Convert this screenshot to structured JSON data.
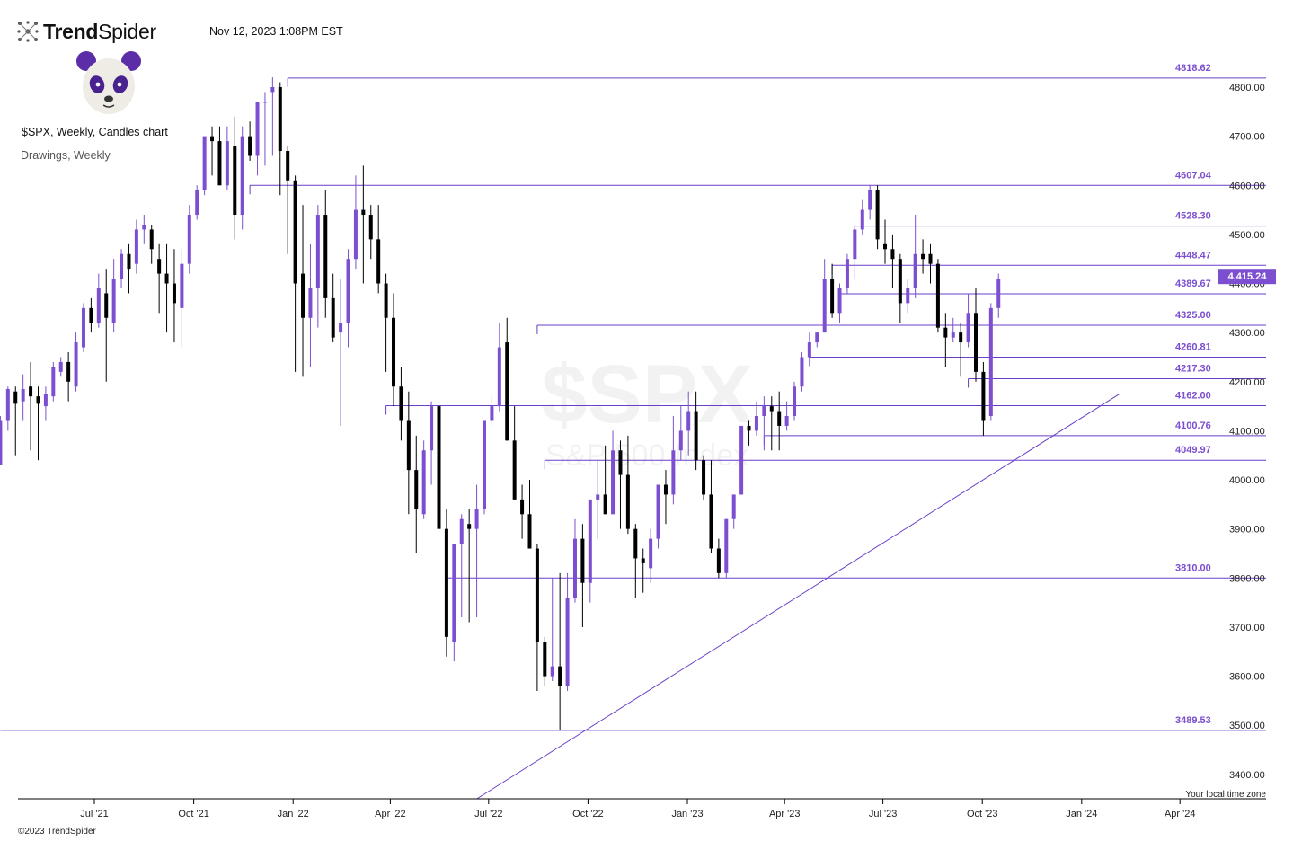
{
  "header": {
    "brand_bold": "Trend",
    "brand_light": "Spider",
    "timestamp": "Nov 12, 2023 1:08PM EST",
    "chart_title": "$SPX, Weekly, Candles chart",
    "subtitle": "Drawings, Weekly",
    "copyright": "©2023 TrendSpider"
  },
  "colors": {
    "bull": "#7b4fd0",
    "bear": "#000000",
    "line": "#6a3fc8",
    "accent": "#7b4fd0"
  },
  "icons": [
    "trendspider-logo-icon",
    "panda-avatar-icon"
  ],
  "watermark": {
    "symbol": "$SPX",
    "name": "S&P 500 Index"
  },
  "chart_data": {
    "type": "candlestick",
    "symbol": "$SPX",
    "timeframe": "Weekly",
    "ylim": [
      3365,
      4870
    ],
    "xlim": [
      "2021-04-05",
      "2024-04-20"
    ],
    "y_ticks": [
      "3400.00",
      "3500.00",
      "3600.00",
      "3700.00",
      "3800.00",
      "3900.00",
      "4000.00",
      "4100.00",
      "4200.00",
      "4300.00",
      "4400.00",
      "4500.00",
      "4600.00",
      "4700.00",
      "4800.00"
    ],
    "x_ticks": [
      {
        "date": "2021-07-01",
        "label": "Jul '21"
      },
      {
        "date": "2021-10-01",
        "label": "Oct '21"
      },
      {
        "date": "2022-01-01",
        "label": "Jan '22"
      },
      {
        "date": "2022-04-01",
        "label": "Apr '22"
      },
      {
        "date": "2022-07-01",
        "label": "Jul '22"
      },
      {
        "date": "2022-10-01",
        "label": "Oct '22"
      },
      {
        "date": "2023-01-01",
        "label": "Jan '23"
      },
      {
        "date": "2023-04-01",
        "label": "Apr '23"
      },
      {
        "date": "2023-07-01",
        "label": "Jul '23"
      },
      {
        "date": "2023-10-01",
        "label": "Oct '23"
      },
      {
        "date": "2024-01-01",
        "label": "Jan '24"
      },
      {
        "date": "2024-04-01",
        "label": "Apr '24"
      }
    ],
    "first_week": "2021-04-05",
    "candles_ohlc": [
      [
        4030,
        4130,
        4030,
        4120
      ],
      [
        4120,
        4190,
        4100,
        4185
      ],
      [
        4180,
        4190,
        4050,
        4155
      ],
      [
        4160,
        4215,
        4120,
        4185
      ],
      [
        4190,
        4240,
        4060,
        4170
      ],
      [
        4170,
        4190,
        4040,
        4155
      ],
      [
        4150,
        4190,
        4120,
        4175
      ],
      [
        4170,
        4240,
        4160,
        4230
      ],
      [
        4220,
        4250,
        4210,
        4240
      ],
      [
        4240,
        4260,
        4160,
        4200
      ],
      [
        4190,
        4300,
        4180,
        4280
      ],
      [
        4270,
        4360,
        4260,
        4350
      ],
      [
        4350,
        4370,
        4300,
        4320
      ],
      [
        4320,
        4420,
        4310,
        4390
      ],
      [
        4380,
        4430,
        4200,
        4330
      ],
      [
        4320,
        4450,
        4300,
        4410
      ],
      [
        4410,
        4470,
        4390,
        4460
      ],
      [
        4460,
        4480,
        4380,
        4430
      ],
      [
        4440,
        4530,
        4420,
        4510
      ],
      [
        4510,
        4540,
        4480,
        4520
      ],
      [
        4510,
        4520,
        4440,
        4470
      ],
      [
        4450,
        4480,
        4340,
        4420
      ],
      [
        4420,
        4480,
        4300,
        4400
      ],
      [
        4400,
        4470,
        4280,
        4360
      ],
      [
        4350,
        4470,
        4270,
        4440
      ],
      [
        4440,
        4560,
        4420,
        4540
      ],
      [
        4540,
        4600,
        4530,
        4590
      ],
      [
        4590,
        4700,
        4580,
        4700
      ],
      [
        4700,
        4720,
        4620,
        4690
      ],
      [
        4690,
        4720,
        4600,
        4600
      ],
      [
        4600,
        4720,
        4590,
        4690
      ],
      [
        4680,
        4740,
        4490,
        4540
      ],
      [
        4540,
        4720,
        4510,
        4700
      ],
      [
        4700,
        4730,
        4650,
        4660
      ],
      [
        4660,
        4750,
        4620,
        4770
      ],
      [
        4770,
        4790,
        4640,
        4770
      ],
      [
        4790,
        4820,
        4660,
        4800
      ],
      [
        4800,
        4810,
        4580,
        4670
      ],
      [
        4670,
        4680,
        4460,
        4610
      ],
      [
        4610,
        4620,
        4220,
        4400
      ],
      [
        4420,
        4560,
        4210,
        4330
      ],
      [
        4330,
        4480,
        4230,
        4390
      ],
      [
        4390,
        4560,
        4310,
        4540
      ],
      [
        4540,
        4590,
        4330,
        4370
      ],
      [
        4370,
        4420,
        4280,
        4290
      ],
      [
        4300,
        4410,
        4110,
        4320
      ],
      [
        4320,
        4470,
        4270,
        4450
      ],
      [
        4450,
        4620,
        4430,
        4550
      ],
      [
        4550,
        4640,
        4400,
        4540
      ],
      [
        4540,
        4560,
        4450,
        4490
      ],
      [
        4490,
        4560,
        4380,
        4400
      ],
      [
        4400,
        4420,
        4220,
        4330
      ],
      [
        4330,
        4380,
        4150,
        4190
      ],
      [
        4190,
        4230,
        4080,
        4120
      ],
      [
        4120,
        4180,
        3930,
        4020
      ],
      [
        4020,
        4090,
        3850,
        3940
      ],
      [
        3930,
        4080,
        3920,
        4060
      ],
      [
        4060,
        4160,
        3990,
        4150
      ],
      [
        4150,
        4150,
        3950,
        3900
      ],
      [
        3900,
        3940,
        3640,
        3680
      ],
      [
        3670,
        3840,
        3630,
        3870
      ],
      [
        3870,
        3930,
        3720,
        3920
      ],
      [
        3910,
        3940,
        3710,
        3900
      ],
      [
        3900,
        3990,
        3720,
        3940
      ],
      [
        3940,
        4120,
        3930,
        4120
      ],
      [
        4120,
        4170,
        4110,
        4150
      ],
      [
        4150,
        4320,
        4140,
        4270
      ],
      [
        4280,
        4330,
        4080,
        4080
      ],
      [
        4080,
        4150,
        4030,
        3960
      ],
      [
        3960,
        3990,
        3880,
        3930
      ],
      [
        3930,
        4000,
        3860,
        3860
      ],
      [
        3860,
        3870,
        3570,
        3670
      ],
      [
        3670,
        3680,
        3580,
        3600
      ],
      [
        3600,
        3800,
        3590,
        3620
      ],
      [
        3620,
        3810,
        3490,
        3580
      ],
      [
        3580,
        3810,
        3570,
        3760
      ],
      [
        3760,
        3920,
        3750,
        3880
      ],
      [
        3880,
        3910,
        3700,
        3790
      ],
      [
        3790,
        3960,
        3750,
        3960
      ],
      [
        3960,
        4040,
        3880,
        3970
      ],
      [
        3970,
        4070,
        3930,
        3930
      ],
      [
        3930,
        4100,
        3930,
        4060
      ],
      [
        4060,
        4080,
        3900,
        4010
      ],
      [
        4010,
        4090,
        3890,
        3900
      ],
      [
        3900,
        3910,
        3760,
        3840
      ],
      [
        3840,
        3860,
        3770,
        3830
      ],
      [
        3820,
        3900,
        3790,
        3880
      ],
      [
        3880,
        3990,
        3860,
        3990
      ],
      [
        3990,
        4020,
        3910,
        3970
      ],
      [
        3970,
        4130,
        3950,
        4060
      ],
      [
        4060,
        4150,
        4040,
        4100
      ],
      [
        4100,
        4180,
        4050,
        4140
      ],
      [
        4140,
        4180,
        4020,
        4040
      ],
      [
        4040,
        4050,
        3960,
        3970
      ],
      [
        3970,
        4040,
        3850,
        3860
      ],
      [
        3860,
        3880,
        3800,
        3810
      ],
      [
        3810,
        3920,
        3800,
        3920
      ],
      [
        3920,
        3970,
        3900,
        3970
      ],
      [
        3970,
        4100,
        3970,
        4110
      ],
      [
        4110,
        4120,
        4070,
        4100
      ],
      [
        4100,
        4160,
        4090,
        4130
      ],
      [
        4130,
        4170,
        4060,
        4150
      ],
      [
        4150,
        4170,
        4060,
        4140
      ],
      [
        4140,
        4180,
        4060,
        4110
      ],
      [
        4110,
        4160,
        4100,
        4130
      ],
      [
        4130,
        4200,
        4120,
        4190
      ],
      [
        4190,
        4260,
        4180,
        4250
      ],
      [
        4250,
        4300,
        4240,
        4280
      ],
      [
        4280,
        4300,
        4270,
        4300
      ],
      [
        4300,
        4450,
        4300,
        4410
      ],
      [
        4410,
        4440,
        4330,
        4340
      ],
      [
        4340,
        4400,
        4320,
        4390
      ],
      [
        4390,
        4460,
        4380,
        4450
      ],
      [
        4450,
        4520,
        4410,
        4510
      ],
      [
        4510,
        4570,
        4500,
        4550
      ],
      [
        4550,
        4600,
        4530,
        4590
      ],
      [
        4590,
        4600,
        4470,
        4490
      ],
      [
        4480,
        4530,
        4440,
        4470
      ],
      [
        4470,
        4500,
        4390,
        4450
      ],
      [
        4450,
        4460,
        4320,
        4360
      ],
      [
        4360,
        4410,
        4340,
        4390
      ],
      [
        4390,
        4540,
        4370,
        4460
      ],
      [
        4460,
        4490,
        4420,
        4450
      ],
      [
        4460,
        4480,
        4400,
        4440
      ],
      [
        4440,
        4450,
        4300,
        4310
      ],
      [
        4310,
        4340,
        4230,
        4290
      ],
      [
        4290,
        4330,
        4280,
        4300
      ],
      [
        4300,
        4320,
        4210,
        4280
      ],
      [
        4280,
        4380,
        4270,
        4340
      ],
      [
        4340,
        4390,
        4200,
        4220
      ],
      [
        4220,
        4240,
        4090,
        4120
      ],
      [
        4130,
        4360,
        4120,
        4350
      ],
      [
        4350,
        4420,
        4330,
        4410
      ]
    ],
    "levels": [
      {
        "value": "4818.62",
        "y": 4818.62,
        "start": "2021-12-27"
      },
      {
        "value": "4607.04",
        "y": 4600.0,
        "start": "2021-11-22"
      },
      {
        "value": "4528.30",
        "y": 4517.0,
        "start": "2023-06-05"
      },
      {
        "value": "4448.47",
        "y": 4437.0,
        "start": "2023-05-15"
      },
      {
        "value": "4389.67",
        "y": 4379.0,
        "start": "2023-05-22"
      },
      {
        "value": "4325.00",
        "y": 4315.0,
        "start": "2022-08-15"
      },
      {
        "value": "4260.81",
        "y": 4250.0,
        "start": "2023-04-24"
      },
      {
        "value": "4217.30",
        "y": 4206.0,
        "start": "2023-09-18"
      },
      {
        "value": "4162.00",
        "y": 4151.0,
        "start": "2022-03-28"
      },
      {
        "value": "4100.76",
        "y": 4090.0,
        "start": "2023-03-13"
      },
      {
        "value": "4049.97",
        "y": 4040.0,
        "start": "2022-08-22"
      },
      {
        "value": "3810.00",
        "y": 3800.0,
        "start": "2022-05-23"
      },
      {
        "value": "3489.53",
        "y": 3489.53,
        "start": "2021-04-05"
      }
    ],
    "trendline": {
      "from": {
        "date": "2022-06-20",
        "y": 3350
      },
      "to": {
        "date": "2024-02-05",
        "y": 4175
      }
    },
    "last_price": {
      "label": "4,415.24",
      "value": 4415.24
    },
    "timezone_label": "Your local time zone"
  }
}
